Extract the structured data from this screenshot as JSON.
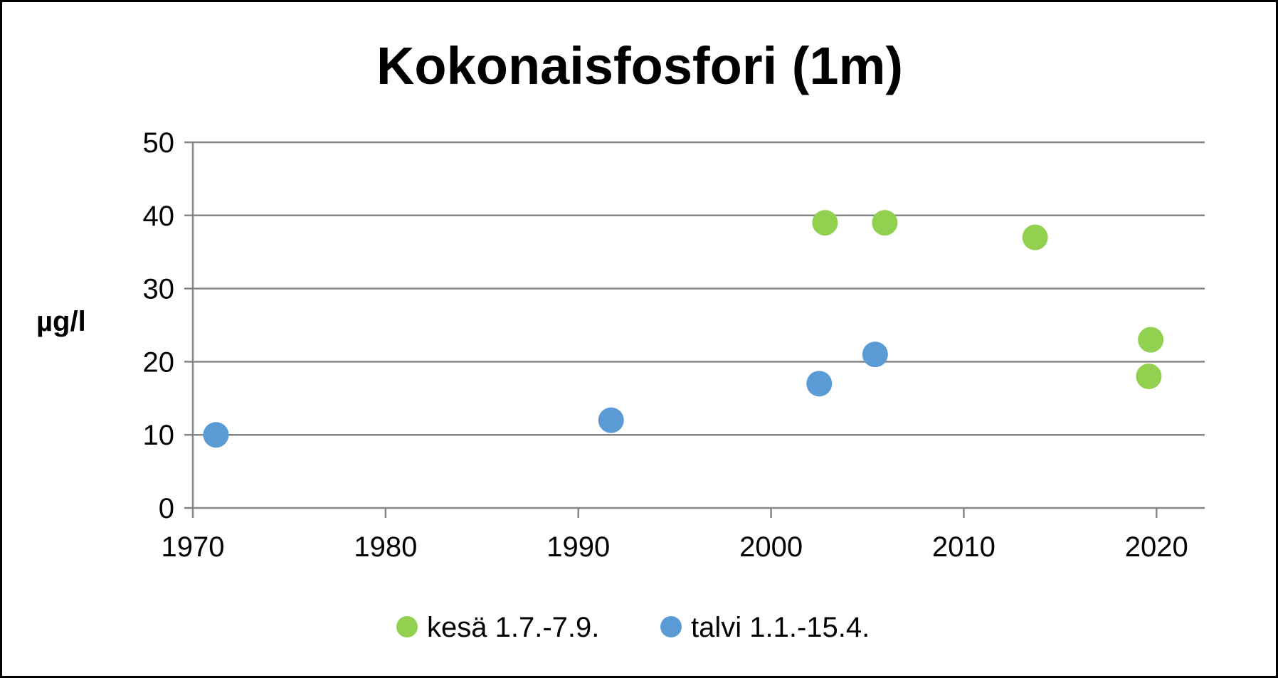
{
  "chart_data": {
    "type": "scatter",
    "title": "Kokonaisfosfori (1m)",
    "xlabel": "",
    "ylabel": "µg/l",
    "xlim": [
      1970,
      2022.5
    ],
    "ylim": [
      0,
      50
    ],
    "x_ticks": [
      1970,
      1980,
      1990,
      2000,
      2010,
      2020
    ],
    "y_ticks": [
      0,
      10,
      20,
      30,
      40,
      50
    ],
    "grid": "horizontal",
    "legend_position": "bottom",
    "series": [
      {
        "name": "kesä 1.7.-7.9.",
        "color": "#92d050",
        "points": [
          {
            "x": 2002.8,
            "y": 39
          },
          {
            "x": 2005.9,
            "y": 39
          },
          {
            "x": 2013.7,
            "y": 37
          },
          {
            "x": 2019.7,
            "y": 23
          },
          {
            "x": 2019.6,
            "y": 18
          }
        ]
      },
      {
        "name": "talvi 1.1.-15.4.",
        "color": "#5b9bd5",
        "points": [
          {
            "x": 1971.2,
            "y": 10
          },
          {
            "x": 1991.7,
            "y": 12
          },
          {
            "x": 2002.5,
            "y": 17
          },
          {
            "x": 2005.4,
            "y": 21
          }
        ]
      }
    ]
  }
}
